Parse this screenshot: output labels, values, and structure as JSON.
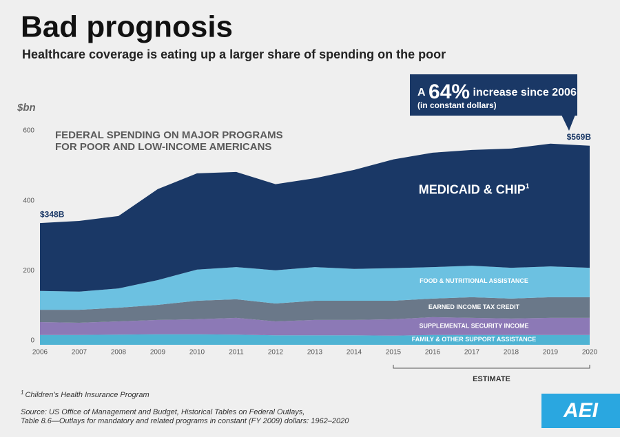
{
  "chart_data": {
    "type": "stacked_area",
    "title": "Bad prognosis",
    "subtitle": "Healthcare coverage is eating up a larger share of spending on the poor",
    "y_unit": "$bn",
    "chart_heading": [
      "FEDERAL SPENDING ON MAJOR PROGRAMS",
      "FOR POOR AND LOW-INCOME AMERICANS"
    ],
    "callout": {
      "prefix": "A",
      "highlight": "64%",
      "suffix": "increase since 2006",
      "note": "(in constant dollars)"
    },
    "x": [
      2006,
      2007,
      2008,
      2009,
      2010,
      2011,
      2012,
      2013,
      2014,
      2015,
      2016,
      2017,
      2018,
      2019,
      2020
    ],
    "xlim": [
      2006,
      2020
    ],
    "xticks": [
      2006,
      2007,
      2008,
      2009,
      2010,
      2011,
      2012,
      2013,
      2014,
      2015,
      2016,
      2017,
      2018,
      2019,
      2020
    ],
    "ylim": [
      0,
      600
    ],
    "yticks": [
      0,
      200,
      400,
      600
    ],
    "grid": false,
    "series": [
      {
        "name": "FAMILY & OTHER SUPPORT ASSISTANCE",
        "color": "#4fb3d3",
        "values": [
          28,
          28,
          29,
          30,
          30,
          29,
          27,
          27,
          27,
          26,
          28,
          28,
          28,
          28,
          28
        ]
      },
      {
        "name": "SUPPLEMENTAL SECURITY INCOME",
        "color": "#8c79b6",
        "values": [
          37,
          35,
          38,
          41,
          43,
          48,
          40,
          44,
          44,
          47,
          51,
          49,
          47,
          49,
          49
        ]
      },
      {
        "name": "EARNED INCOME TAX CREDIT",
        "color": "#6a7889",
        "values": [
          35,
          37,
          39,
          43,
          53,
          53,
          51,
          55,
          55,
          53,
          53,
          59,
          57,
          59,
          59
        ]
      },
      {
        "name": "FOOD & NUTRITIONAL ASSISTANCE",
        "color": "#6cc1e1",
        "values": [
          54,
          52,
          55,
          71,
          89,
          92,
          95,
          96,
          91,
          93,
          90,
          90,
          88,
          88,
          84
        ]
      },
      {
        "name": "MEDICAID & CHIP",
        "footnote_mark": "1",
        "color": "#1a3866",
        "values": [
          194,
          202,
          207,
          260,
          275,
          272,
          246,
          254,
          283,
          311,
          327,
          331,
          341,
          351,
          349
        ]
      }
    ],
    "annotations": [
      {
        "text": "$348B",
        "x": 2006,
        "value": 348
      },
      {
        "text": "$569B",
        "x": 2020,
        "value": 569
      }
    ],
    "estimate": {
      "label": "ESTIMATE",
      "from": 2015,
      "to": 2020
    },
    "footnote": {
      "mark": "1",
      "text": "Children’s Health Insurance Program"
    },
    "source": [
      "Source: US Office of Management and Budget, Historical Tables on Federal Outlays,",
      "Table 8.6—Outlays for mandatory and related programs in constant (FY 2009) dollars: 1962–2020"
    ],
    "logo": "AEI"
  }
}
